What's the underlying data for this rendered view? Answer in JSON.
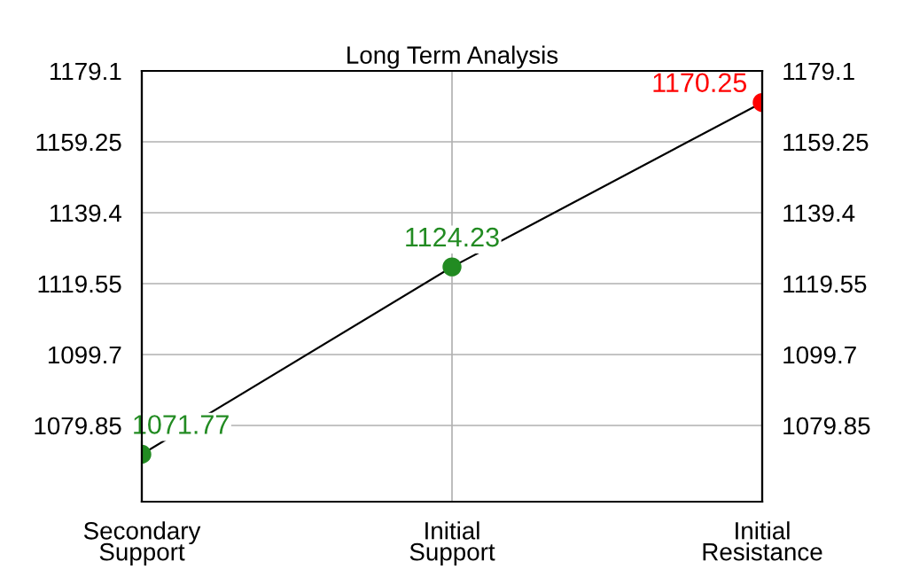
{
  "chart_data": {
    "type": "line",
    "title": "Long Term Analysis",
    "categories": [
      "Secondary\nSupport",
      "Initial\nSupport",
      "Initial\nResistance"
    ],
    "series": [
      {
        "color": "#000000",
        "colors": [
          "#228b22",
          "#228b22",
          "#ff0000"
        ],
        "values": [
          1071.77,
          1124.23,
          1170.25
        ]
      }
    ],
    "data_labels": true,
    "marker": "circle",
    "line_style": "solid",
    "ylim": [
      1058.5,
      1179.1
    ],
    "yticks": [
      1079.85,
      1099.7,
      1119.55,
      1139.4,
      1159.25,
      1179.1
    ],
    "y2lim": [
      1058.5,
      1179.1
    ],
    "y2ticks": [
      1079.85,
      1099.7,
      1119.55,
      1139.4,
      1159.25,
      1179.1
    ],
    "grid": true
  }
}
